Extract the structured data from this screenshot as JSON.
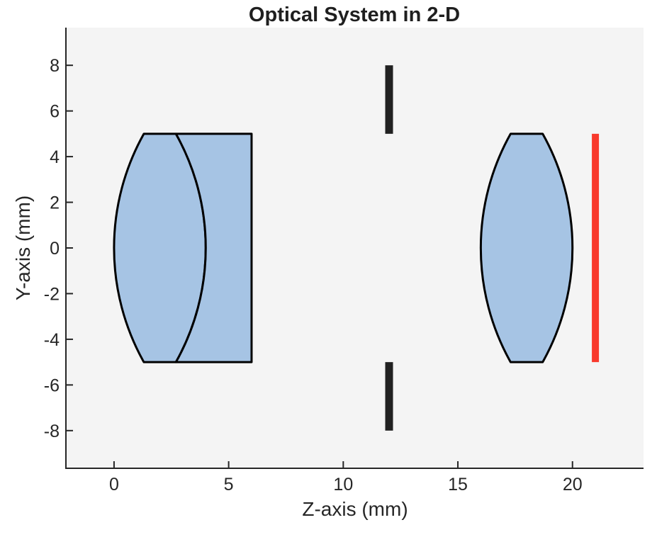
{
  "figure": {
    "title": "Optical System in 2-D",
    "xlabel": "Z-axis (mm)",
    "ylabel": "Y-axis (mm)"
  },
  "chart_data": {
    "type": "line",
    "subtype": "2d-optical-system-layout",
    "title": "Optical System in 2-D",
    "xlabel": "Z-axis (mm)",
    "ylabel": "Y-axis (mm)",
    "xlim": [
      -2.1,
      23.1
    ],
    "ylim": [
      -9.65,
      9.65
    ],
    "x_ticks": [
      0,
      5,
      10,
      15,
      20
    ],
    "y_ticks": [
      8,
      6,
      4,
      2,
      0,
      -2,
      -4,
      -6,
      -8
    ],
    "grid": false,
    "styles": {
      "page_bg": "#ffffff",
      "plot_bg": "#f4f4f4",
      "axis_color": "#262626",
      "text_color": "#262626",
      "lens_fill": "#a6c4e4",
      "lens_stroke": "#000000",
      "stop_color": "#212121",
      "image_plane_color": "#f8392c"
    },
    "elements": [
      {
        "id": "doublet-element-1",
        "kind": "lens",
        "half_aperture": 5,
        "surfaces": {
          "left": {
            "vertex_z": 0,
            "edge_z": 1.3
          },
          "right": {
            "vertex_z": 4,
            "edge_z": 2.7
          }
        }
      },
      {
        "id": "doublet-element-2",
        "kind": "lens",
        "half_aperture": 5,
        "surfaces": {
          "left": {
            "vertex_z": 4,
            "edge_z": 2.7
          },
          "right": {
            "vertex_z": 6,
            "edge_z": 6
          }
        }
      },
      {
        "id": "aperture-stop",
        "kind": "stop",
        "z": 12,
        "inner_semi_aperture": 5,
        "outer_semi_aperture": 8
      },
      {
        "id": "singlet-lens",
        "kind": "lens",
        "half_aperture": 5,
        "surfaces": {
          "left": {
            "vertex_z": 16,
            "edge_z": 17.3
          },
          "right": {
            "vertex_z": 20,
            "edge_z": 18.7
          }
        }
      },
      {
        "id": "image-plane",
        "kind": "image-plane",
        "z": 21,
        "y_min": -5,
        "y_max": 5
      }
    ]
  }
}
